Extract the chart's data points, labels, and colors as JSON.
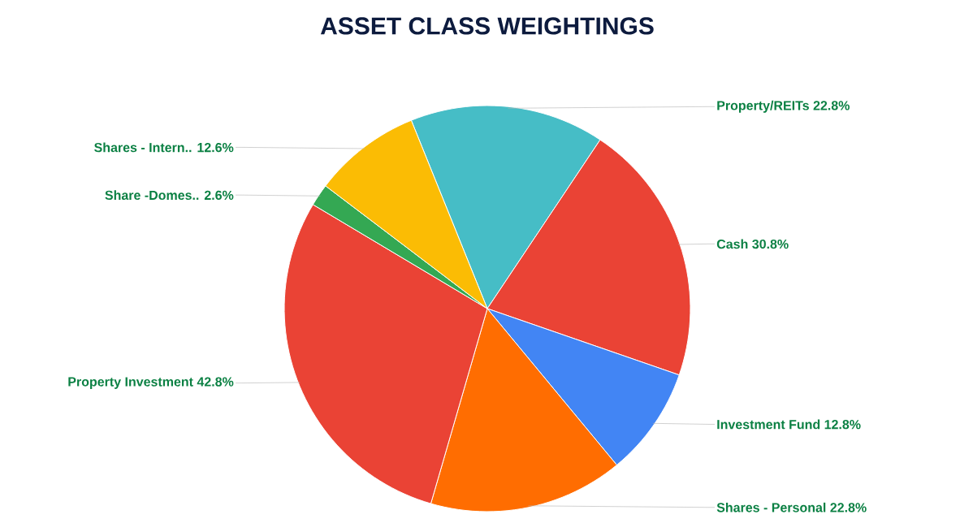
{
  "chart_data": {
    "type": "pie",
    "title": "ASSET CLASS WEIGHTINGS",
    "categories": [
      "Property/REITs",
      "Cash",
      "Investment Fund",
      "Shares - Personal",
      "Property Investment",
      "Share -Domes..",
      "Shares - Intern.."
    ],
    "values": [
      22.8,
      30.8,
      12.8,
      22.8,
      42.8,
      2.6,
      12.6
    ],
    "value_labels": [
      "22.8%",
      "30.8%",
      "12.8%",
      "22.8%",
      "42.8%",
      "2.6%",
      "12.6%"
    ],
    "colors": [
      "#46bdc6",
      "#ea4335",
      "#4285f4",
      "#ff6d01",
      "#ea4335",
      "#34a853",
      "#fbbc04"
    ]
  }
}
